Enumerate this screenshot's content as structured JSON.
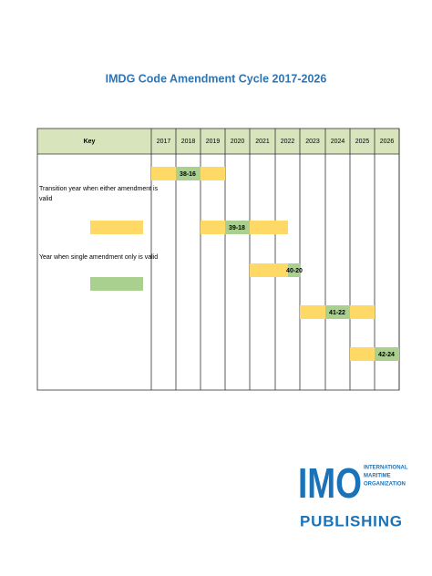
{
  "title": "IMDG Code Amendment Cycle 2017-2026",
  "table": {
    "header": {
      "key": "Key",
      "years": [
        "2017",
        "2018",
        "2019",
        "2020",
        "2021",
        "2022",
        "2023",
        "2024",
        "2025",
        "2026"
      ]
    },
    "key_items": [
      "Transition year when either amendment is",
      "valid",
      "Year when single amendment only is valid"
    ],
    "amendments": [
      "38-16",
      "39-18",
      "40-20",
      "41-22",
      "42-24"
    ]
  },
  "logo": {
    "mark": "IMO",
    "lines": [
      "INTERNATIONAL",
      "MARITIME",
      "ORGANIZATION"
    ],
    "publishing": "PUBLISHING"
  }
}
